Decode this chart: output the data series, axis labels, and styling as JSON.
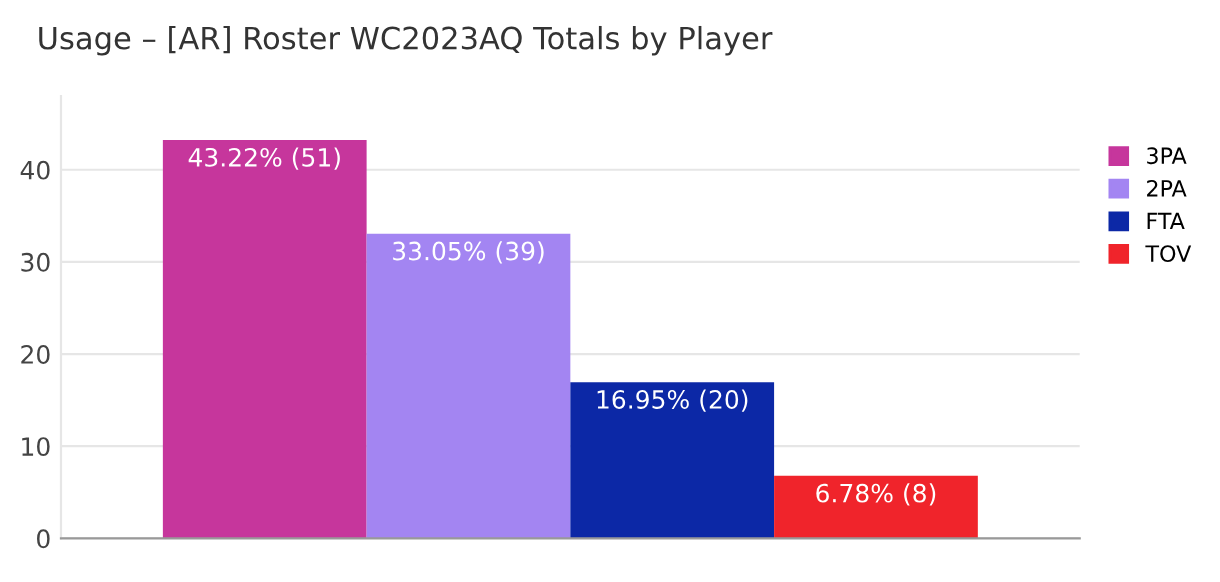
{
  "chart_data": {
    "type": "bar",
    "title": "Usage – [AR] Roster WC2023AQ Totals by Player",
    "categories": [
      null
    ],
    "series": [
      {
        "name": "3PA",
        "color": "#c6369c",
        "values": [
          43.22
        ],
        "value_labels": [
          "43.22% (51)"
        ]
      },
      {
        "name": "2PA",
        "color": "#a385f2",
        "values": [
          33.05
        ],
        "value_labels": [
          "33.05% (39)"
        ]
      },
      {
        "name": "FTA",
        "color": "#0c28a6",
        "values": [
          16.95
        ],
        "value_labels": [
          "16.95% (20)"
        ]
      },
      {
        "name": "TOV",
        "color": "#f0242b",
        "values": [
          6.78
        ],
        "value_labels": [
          "6.78% (8)"
        ]
      }
    ],
    "ylim": [
      0,
      48
    ],
    "yticks": [
      0,
      10,
      20,
      30,
      40
    ],
    "grid": "y",
    "legend": "right"
  }
}
